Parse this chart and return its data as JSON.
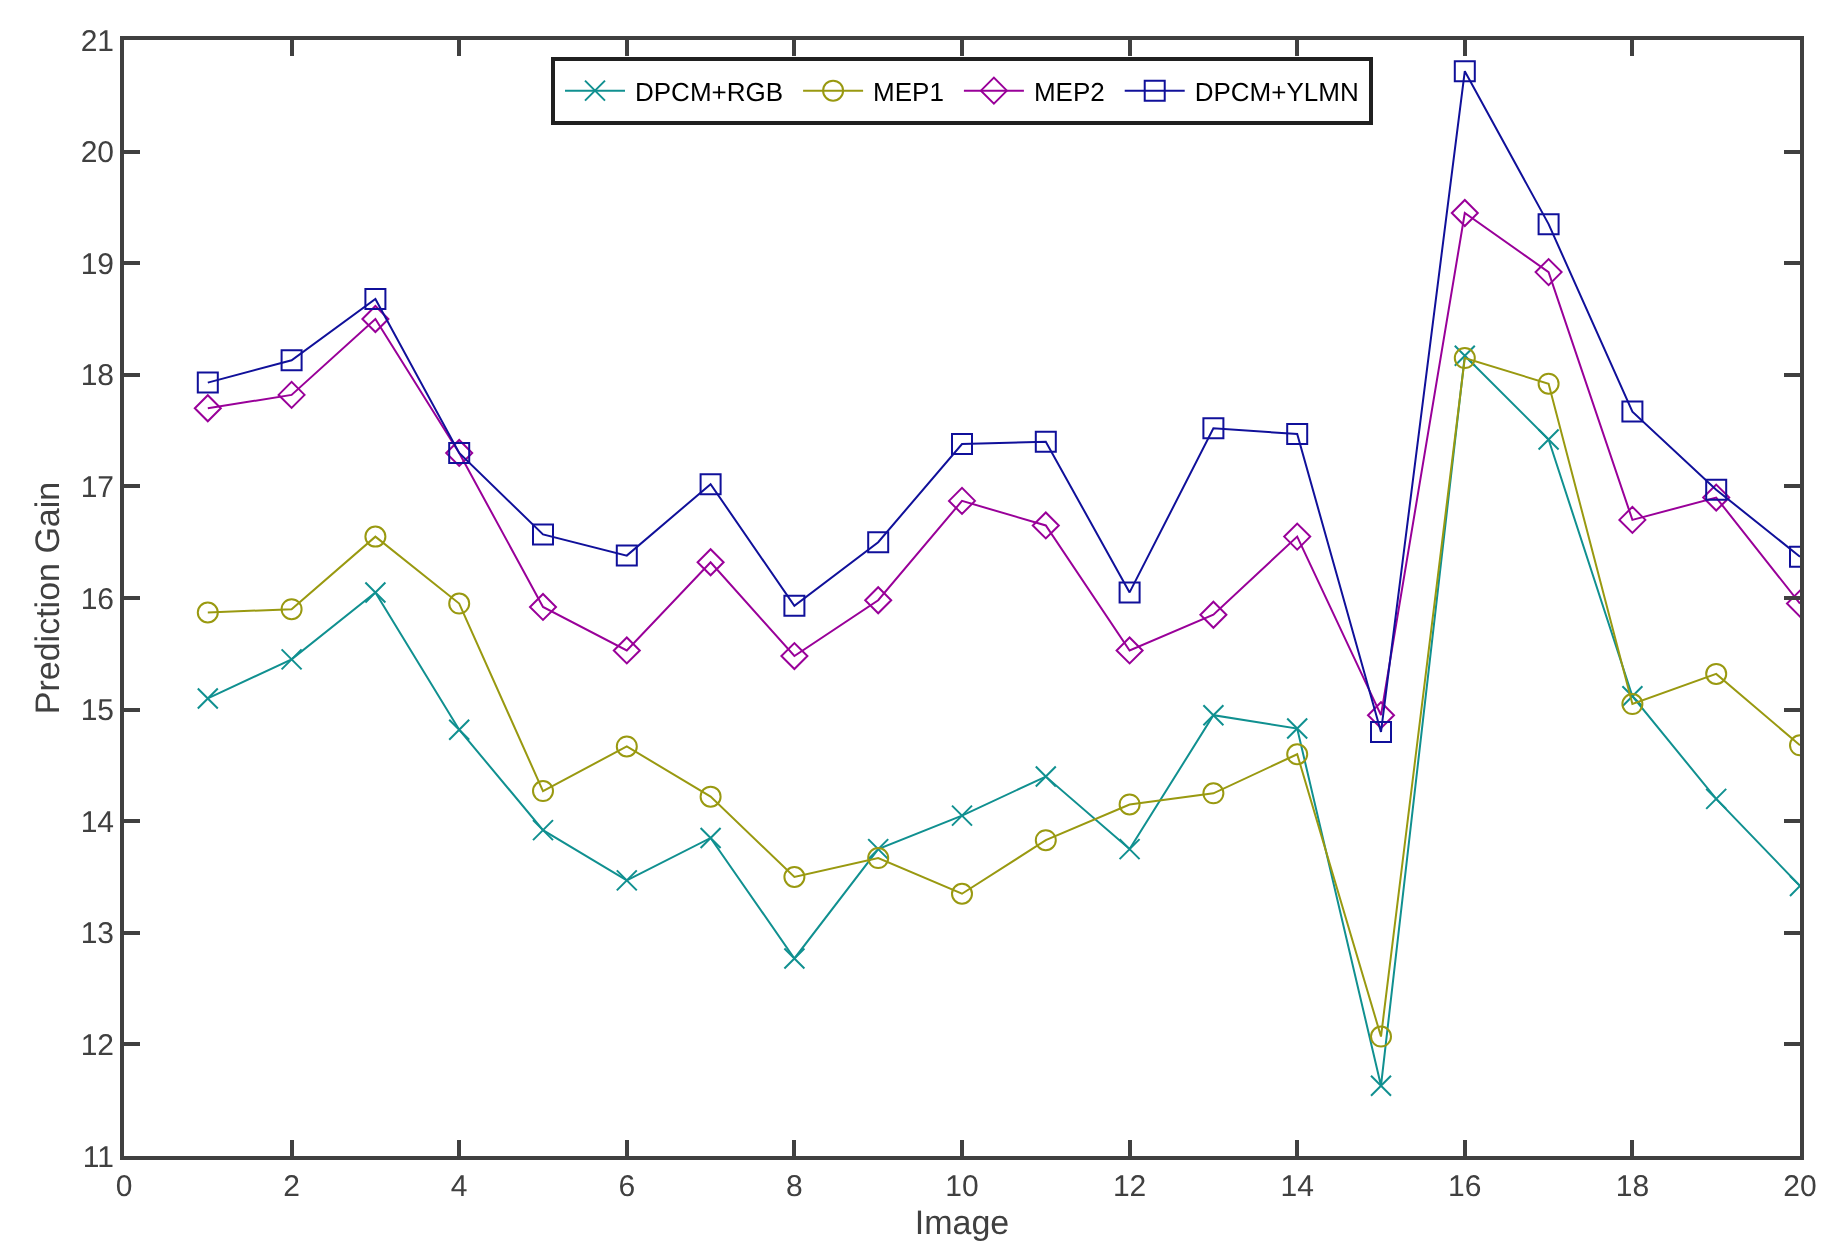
{
  "chart_data": {
    "type": "line",
    "xlabel": "Image",
    "ylabel": "Prediction Gain",
    "x": [
      1,
      2,
      3,
      4,
      5,
      6,
      7,
      8,
      9,
      10,
      11,
      12,
      13,
      14,
      15,
      16,
      17,
      18,
      19,
      20
    ],
    "xlim": [
      0,
      20
    ],
    "xticks": [
      0,
      2,
      4,
      6,
      8,
      10,
      12,
      14,
      16,
      18,
      20
    ],
    "ylim": [
      11,
      21
    ],
    "yticks": [
      11,
      12,
      13,
      14,
      15,
      16,
      17,
      18,
      19,
      20,
      21
    ],
    "legend": "top",
    "line_style": "solid",
    "series": [
      {
        "name": "DPCM+RGB",
        "color": "#109090",
        "marker": "cross",
        "values": [
          15.1,
          15.45,
          16.05,
          14.82,
          13.92,
          13.47,
          13.85,
          12.77,
          13.75,
          14.05,
          14.4,
          13.75,
          14.95,
          14.83,
          11.63,
          18.17,
          17.42,
          15.12,
          14.2,
          13.42
        ]
      },
      {
        "name": "MEP1",
        "color": "#999910",
        "marker": "circle",
        "values": [
          15.87,
          15.9,
          16.55,
          15.95,
          14.27,
          14.67,
          14.22,
          13.5,
          13.67,
          13.35,
          13.83,
          14.15,
          14.25,
          14.6,
          12.07,
          18.15,
          17.92,
          15.05,
          15.32,
          14.68
        ]
      },
      {
        "name": "MEP2",
        "color": "#990099",
        "marker": "diamond",
        "values": [
          17.7,
          17.82,
          18.5,
          17.3,
          15.92,
          15.53,
          16.32,
          15.48,
          15.98,
          16.87,
          16.65,
          15.53,
          15.85,
          16.55,
          14.95,
          19.45,
          18.92,
          16.7,
          16.9,
          15.95
        ]
      },
      {
        "name": "DPCM+YLMN",
        "color": "#10109a",
        "marker": "square",
        "values": [
          17.93,
          18.13,
          18.68,
          17.3,
          16.57,
          16.38,
          17.02,
          15.93,
          16.5,
          17.38,
          17.4,
          16.05,
          17.52,
          17.47,
          14.8,
          20.72,
          19.35,
          17.67,
          16.97,
          16.37
        ]
      }
    ]
  }
}
